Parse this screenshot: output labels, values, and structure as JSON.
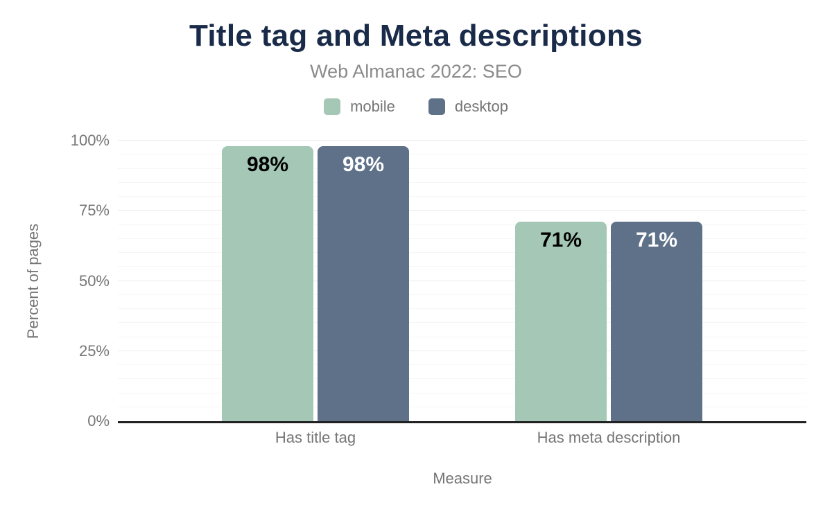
{
  "figure": {
    "title": "Title tag and Meta descriptions",
    "subtitle": "Web Almanac 2022: SEO"
  },
  "chart_data": {
    "type": "bar",
    "title": "Title tag and Meta descriptions",
    "subtitle": "Web Almanac 2022: SEO",
    "categories": [
      "Has title tag",
      "Has meta description"
    ],
    "series": [
      {
        "name": "mobile",
        "values": [
          98,
          71
        ],
        "value_labels": [
          "98%",
          "71%"
        ],
        "color": "#a4c8b5",
        "label_color": "#000000"
      },
      {
        "name": "desktop",
        "values": [
          98,
          71
        ],
        "value_labels": [
          "98%",
          "71%"
        ],
        "color": "#5e7189",
        "label_color": "#ffffff"
      }
    ],
    "xlabel": "Measure",
    "ylabel": "Percent of pages",
    "ylim": [
      0,
      100
    ],
    "y_ticks": [
      0,
      25,
      50,
      75,
      100
    ],
    "y_tick_labels": [
      "0%",
      "25%",
      "50%",
      "75%",
      "100%"
    ],
    "value_suffix": "%",
    "grid": "horizontal minor lines every 5%, major lines every 25%",
    "legend_position": "top-center"
  },
  "colors": {
    "background": "#ffffff",
    "title_text": "#1a2b49",
    "subtitle_text": "#8b8b8b",
    "axis_text": "#757575",
    "axis_line": "#212121",
    "grid_minor": "#f6f6f6",
    "grid_major": "#ececec",
    "mobile_series": "#a4c8b5",
    "desktop_series": "#5e7189"
  }
}
